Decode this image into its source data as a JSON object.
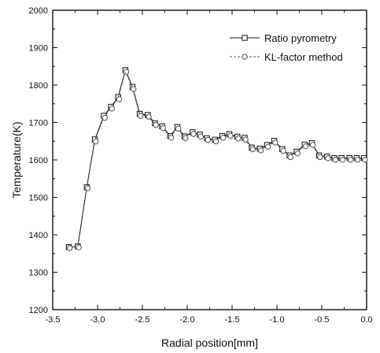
{
  "chart_data": {
    "type": "line",
    "xlabel": "Radial position[mm]",
    "ylabel": "Temperature(K)",
    "xlim": [
      -3.5,
      0.0
    ],
    "ylim": [
      1200,
      2000
    ],
    "x_ticks": [
      "-3.5",
      "-3.0",
      "-2.5",
      "-2.0",
      "-1.5",
      "-1.0",
      "-0.5",
      "0.0"
    ],
    "y_ticks": [
      "1200",
      "1300",
      "1400",
      "1500",
      "1600",
      "1700",
      "1800",
      "1900",
      "2000"
    ],
    "grid": false,
    "legend_position": "top-right",
    "series": [
      {
        "name": "Ratio pyrometry",
        "marker": "square",
        "line": "solid",
        "color": "#111111",
        "x": [
          -3.32,
          -3.22,
          -3.12,
          -3.03,
          -2.93,
          -2.85,
          -2.77,
          -2.69,
          -2.61,
          -2.53,
          -2.44,
          -2.36,
          -2.28,
          -2.19,
          -2.11,
          -2.03,
          -1.94,
          -1.86,
          -1.78,
          -1.69,
          -1.61,
          -1.53,
          -1.44,
          -1.36,
          -1.28,
          -1.19,
          -1.11,
          -1.03,
          -0.94,
          -0.86,
          -0.78,
          -0.69,
          -0.61,
          -0.53,
          -0.44,
          -0.36,
          -0.28,
          -0.19,
          -0.11,
          -0.03
        ],
        "values": [
          1367,
          1369,
          1527,
          1655,
          1718,
          1742,
          1768,
          1840,
          1795,
          1723,
          1720,
          1698,
          1690,
          1664,
          1688,
          1663,
          1674,
          1668,
          1658,
          1654,
          1664,
          1669,
          1662,
          1659,
          1633,
          1630,
          1640,
          1651,
          1629,
          1612,
          1622,
          1641,
          1645,
          1612,
          1609,
          1605,
          1605,
          1605,
          1605,
          1605
        ]
      },
      {
        "name": "KL-factor method",
        "marker": "circle",
        "line": "dashed",
        "color": "#555555",
        "x": [
          -3.32,
          -3.22,
          -3.12,
          -3.03,
          -2.93,
          -2.85,
          -2.77,
          -2.69,
          -2.61,
          -2.53,
          -2.44,
          -2.36,
          -2.28,
          -2.19,
          -2.11,
          -2.03,
          -1.94,
          -1.86,
          -1.78,
          -1.69,
          -1.61,
          -1.53,
          -1.44,
          -1.36,
          -1.28,
          -1.19,
          -1.11,
          -1.03,
          -0.94,
          -0.86,
          -0.78,
          -0.69,
          -0.61,
          -0.53,
          -0.44,
          -0.36,
          -0.28,
          -0.19,
          -0.11,
          -0.03
        ],
        "values": [
          1367,
          1369,
          1527,
          1652,
          1715,
          1740,
          1765,
          1838,
          1792,
          1720,
          1718,
          1696,
          1688,
          1662,
          1686,
          1661,
          1672,
          1665,
          1656,
          1652,
          1662,
          1667,
          1660,
          1657,
          1631,
          1628,
          1638,
          1649,
          1627,
          1610,
          1620,
          1639,
          1643,
          1610,
          1607,
          1603,
          1603,
          1603,
          1603,
          1603
        ]
      }
    ]
  }
}
